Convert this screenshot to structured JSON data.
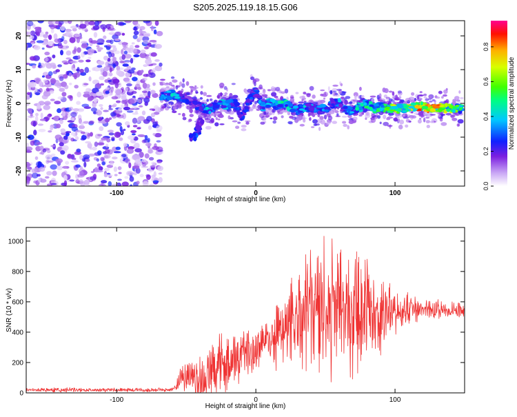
{
  "title": "S205.2025.119.18.15.G06",
  "chart_data": [
    {
      "type": "heatmap",
      "xlabel": "Height of straight line (km)",
      "ylabel": "Frequency (Hz)",
      "xlim": [
        -165,
        150
      ],
      "ylim": [
        -24.5,
        24.5
      ],
      "xticks": [
        -100,
        0,
        100
      ],
      "yticks": [
        -20,
        -10,
        0,
        10,
        20
      ],
      "colorbar": {
        "label": "Normalized spectral amplitude",
        "range": [
          0,
          0.95
        ],
        "ticks": [
          0.0,
          0.2,
          0.4,
          0.6,
          0.8
        ],
        "colormap": [
          "#ffffff",
          "#8a2be2",
          "#0000ff",
          "#00ffff",
          "#00ff00",
          "#ffff00",
          "#ff0000",
          "#ff00ff"
        ]
      },
      "noise_region_x": [
        -165,
        -68
      ],
      "ridge": {
        "x": [
          -68,
          -60,
          -52,
          -45,
          -40,
          -35,
          -30,
          -25,
          -20,
          -15,
          -10,
          -5,
          0,
          5,
          10,
          15,
          20,
          25,
          30,
          35,
          40,
          45,
          50,
          55,
          60,
          65,
          70,
          75,
          80,
          85,
          90,
          95,
          100,
          105,
          110,
          115,
          120,
          125,
          130,
          135,
          140,
          145,
          148
        ],
        "freq": [
          2,
          2.5,
          1.5,
          0,
          -1,
          -2,
          -1,
          0,
          -0.5,
          0,
          -4,
          0.5,
          4,
          -1,
          0,
          -0.5,
          0,
          -1,
          -2,
          -1.5,
          -1,
          -2,
          -1.5,
          0,
          0,
          -2,
          -2,
          -1,
          0,
          -1.5,
          -1,
          -1.5,
          -1.5,
          -1.5,
          -1.5,
          -1,
          -1,
          -1.5,
          -1.5,
          -1.5,
          -1.5,
          -1.5,
          -1.5
        ],
        "amp": [
          0.4,
          0.45,
          0.35,
          0.25,
          0.3,
          0.45,
          0.35,
          0.5,
          0.4,
          0.3,
          0.3,
          0.3,
          0.35,
          0.4,
          0.45,
          0.5,
          0.55,
          0.45,
          0.35,
          0.45,
          0.4,
          0.35,
          0.4,
          0.35,
          0.4,
          0.35,
          0.45,
          0.5,
          0.55,
          0.6,
          0.6,
          0.65,
          0.75,
          0.7,
          0.75,
          0.85,
          0.9,
          0.95,
          0.9,
          0.8,
          0.7,
          0.6,
          0.5
        ]
      },
      "side_feature": {
        "x": [
          -45,
          -42,
          -40
        ],
        "freq": [
          -10,
          -8,
          -6
        ],
        "amp": [
          0.3,
          0.25,
          0.2
        ]
      }
    },
    {
      "type": "line",
      "xlabel": "Height of straight line (km)",
      "ylabel": "SNR (10 * v/v)",
      "xlim": [
        -165,
        150
      ],
      "ylim": [
        0,
        1090
      ],
      "xticks": [
        -100,
        0,
        100
      ],
      "yticks": [
        0,
        200,
        400,
        600,
        800,
        1000
      ],
      "color": "#ef3333",
      "series": [
        {
          "x": [
            -165,
            -140,
            -120,
            -100,
            -80,
            -65,
            -58,
            -55,
            -50,
            -45,
            -40,
            -35,
            -30,
            -25,
            -20,
            -15,
            -10,
            -5,
            0,
            5,
            10,
            15,
            20,
            25,
            30,
            35,
            40,
            45,
            50,
            55,
            60,
            65,
            70,
            75,
            80,
            85,
            90,
            95,
            100,
            105,
            110,
            115,
            120,
            125,
            130,
            135,
            140,
            145,
            150
          ],
          "base": [
            20,
            20,
            20,
            20,
            20,
            20,
            30,
            70,
            130,
            100,
            60,
            120,
            150,
            180,
            200,
            220,
            240,
            270,
            300,
            330,
            360,
            390,
            420,
            450,
            480,
            500,
            520,
            530,
            540,
            550,
            560,
            560,
            560,
            550,
            540,
            540,
            530,
            530,
            520,
            540,
            550,
            550,
            550,
            550,
            550,
            550,
            550,
            550,
            550
          ],
          "env": [
            15,
            18,
            15,
            15,
            15,
            15,
            20,
            90,
            130,
            150,
            260,
            160,
            230,
            240,
            240,
            180,
            220,
            200,
            190,
            210,
            220,
            300,
            310,
            420,
            380,
            440,
            470,
            520,
            540,
            520,
            480,
            540,
            500,
            470,
            420,
            380,
            330,
            260,
            200,
            170,
            140,
            110,
            90,
            80,
            70,
            60,
            60,
            60,
            60
          ]
        }
      ]
    }
  ]
}
